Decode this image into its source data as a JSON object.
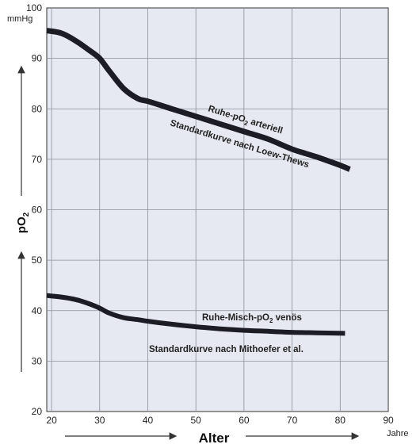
{
  "chart_data": {
    "type": "line",
    "xlabel": "Alter",
    "x_unit": "Jahre",
    "ylabel": "pO2",
    "y_unit": "mmHg",
    "xlim": [
      19,
      90
    ],
    "ylim": [
      20,
      100
    ],
    "x_ticks": [
      20,
      30,
      40,
      50,
      60,
      70,
      80,
      90
    ],
    "y_ticks": [
      20,
      30,
      40,
      50,
      60,
      70,
      80,
      90,
      100
    ],
    "grid": true,
    "series": [
      {
        "name": "Ruhe-pO2 arteriell",
        "x": [
          19,
          22,
          25,
          28,
          30,
          32,
          35,
          38,
          40,
          45,
          50,
          55,
          60,
          65,
          70,
          75,
          80,
          82
        ],
        "y": [
          95.5,
          95,
          93.5,
          91.5,
          90,
          87.5,
          84,
          82,
          81.5,
          80,
          78.5,
          77,
          75.5,
          74,
          72,
          70.5,
          68.8,
          68
        ]
      },
      {
        "name": "Ruhe-Misch-pO2 venös",
        "x": [
          19,
          22,
          25,
          28,
          30,
          32,
          35,
          38,
          40,
          45,
          50,
          55,
          60,
          65,
          70,
          75,
          81
        ],
        "y": [
          43,
          42.7,
          42.2,
          41.3,
          40.5,
          39.5,
          38.6,
          38.2,
          37.9,
          37.3,
          36.8,
          36.4,
          36.1,
          35.9,
          35.7,
          35.6,
          35.5
        ]
      }
    ],
    "annotations": [
      "Ruhe-pO2 arteriell",
      "Standardkurve nach Loew-Thews",
      "Ruhe-Misch-pO2 venös",
      "Standardkurve nach Mithoefer et al."
    ]
  }
}
